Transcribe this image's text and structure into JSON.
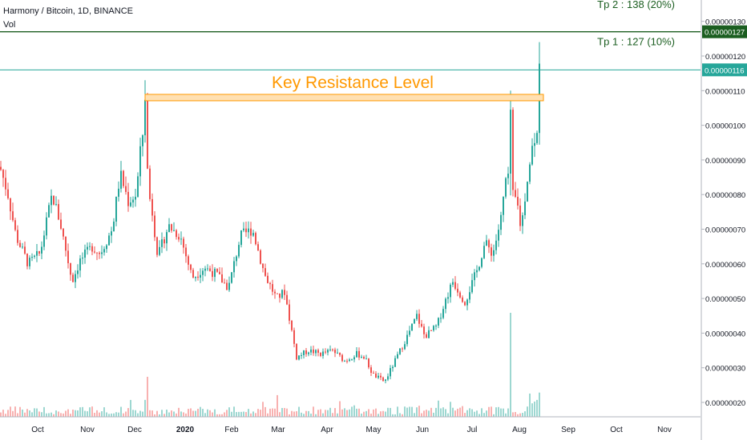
{
  "header": {
    "symbol_line": "Harmony / Bitcoin, 1D, BINANCE",
    "volume_label": "Vol"
  },
  "colors": {
    "up": "#26a69a",
    "down": "#ef5350",
    "up_volume": "#26a69a",
    "down_volume": "#ef5350",
    "tp_line": "#1b5e20",
    "price_line": "#26a69a",
    "resistance_fill": "#ffe0b2",
    "resistance_border": "#ff9800",
    "resistance_text": "#ff9800",
    "axis_text": "#131722"
  },
  "chart_data": {
    "type": "candlestick",
    "ylim": [
      1.6e-07,
      1.34e-06
    ],
    "y_ticks": [
      "0.00000020",
      "0.00000030",
      "0.00000040",
      "0.00000050",
      "0.00000060",
      "0.00000070",
      "0.00000080",
      "0.00000090",
      "0.00000100",
      "0.00000110",
      "0.00000120",
      "0.00000130"
    ],
    "x_ticks": [
      "Oct",
      "Nov",
      "Dec",
      "2020",
      "Feb",
      "Mar",
      "Apr",
      "May",
      "Jun",
      "Jul",
      "Aug",
      "Sep",
      "Oct",
      "Nov"
    ],
    "anchors_close": [
      [
        0,
        8.8e-07
      ],
      [
        10,
        8e-07
      ],
      [
        20,
        6.8e-07
      ],
      [
        35,
        6e-07
      ],
      [
        50,
        6.3e-07
      ],
      [
        65,
        8e-07
      ],
      [
        75,
        7.2e-07
      ],
      [
        90,
        5.5e-07
      ],
      [
        100,
        6.1e-07
      ],
      [
        115,
        6.5e-07
      ],
      [
        125,
        6.3e-07
      ],
      [
        140,
        7e-07
      ],
      [
        150,
        8.6e-07
      ],
      [
        160,
        7.8e-07
      ],
      [
        170,
        8e-07
      ],
      [
        175,
        9.2e-07
      ],
      [
        180,
        1.01e-06
      ],
      [
        186,
        8e-07
      ],
      [
        190,
        7.5e-07
      ],
      [
        197,
        6.2e-07
      ],
      [
        210,
        7.1e-07
      ],
      [
        225,
        6.8e-07
      ],
      [
        240,
        5.6e-07
      ],
      [
        255,
        5.9e-07
      ],
      [
        270,
        5.7e-07
      ],
      [
        285,
        5.3e-07
      ],
      [
        300,
        6.8e-07
      ],
      [
        315,
        7e-07
      ],
      [
        330,
        5.7e-07
      ],
      [
        345,
        5e-07
      ],
      [
        355,
        5.2e-07
      ],
      [
        370,
        3.3e-07
      ],
      [
        385,
        3.5e-07
      ],
      [
        400,
        3.4e-07
      ],
      [
        415,
        3.5e-07
      ],
      [
        430,
        3.2e-07
      ],
      [
        445,
        3.4e-07
      ],
      [
        455,
        3.3e-07
      ],
      [
        465,
        2.8e-07
      ],
      [
        480,
        2.6e-07
      ],
      [
        495,
        3.3e-07
      ],
      [
        510,
        4e-07
      ],
      [
        520,
        4.5e-07
      ],
      [
        530,
        3.9e-07
      ],
      [
        545,
        4.2e-07
      ],
      [
        555,
        4.9e-07
      ],
      [
        565,
        5.5e-07
      ],
      [
        580,
        4.9e-07
      ],
      [
        595,
        5.8e-07
      ],
      [
        605,
        6.6e-07
      ],
      [
        615,
        6.3e-07
      ],
      [
        625,
        7.3e-07
      ],
      [
        632,
        8.6e-07
      ],
      [
        638,
        8e-07
      ],
      [
        645,
        7.8e-07
      ],
      [
        650,
        7e-07
      ],
      [
        658,
        8.5e-07
      ],
      [
        665,
        9.5e-07
      ],
      [
        670,
        1e-06
      ],
      [
        674,
        1.16e-06
      ]
    ],
    "spikes": [
      {
        "x": 181,
        "high": 1.13e-06,
        "low": 9.5e-07
      },
      {
        "x": 637,
        "high": 1.1e-06,
        "low": 8e-07
      },
      {
        "x": 674,
        "high": 1.24e-06,
        "low": 1e-06
      }
    ],
    "resistance": {
      "label": "Key Resistance Level",
      "price": 1.08e-06,
      "x_start": 181,
      "x_end": 678
    },
    "take_profits": [
      {
        "label": "Tp 1 : 127 (10%)",
        "price": 1.27e-06
      },
      {
        "label": "Tp 2 : 138 (20%)",
        "price": 1.38e-06
      }
    ],
    "last_price": 1.16e-06,
    "badges": [
      "0.00000127",
      "0.00000116"
    ],
    "grid": false
  }
}
